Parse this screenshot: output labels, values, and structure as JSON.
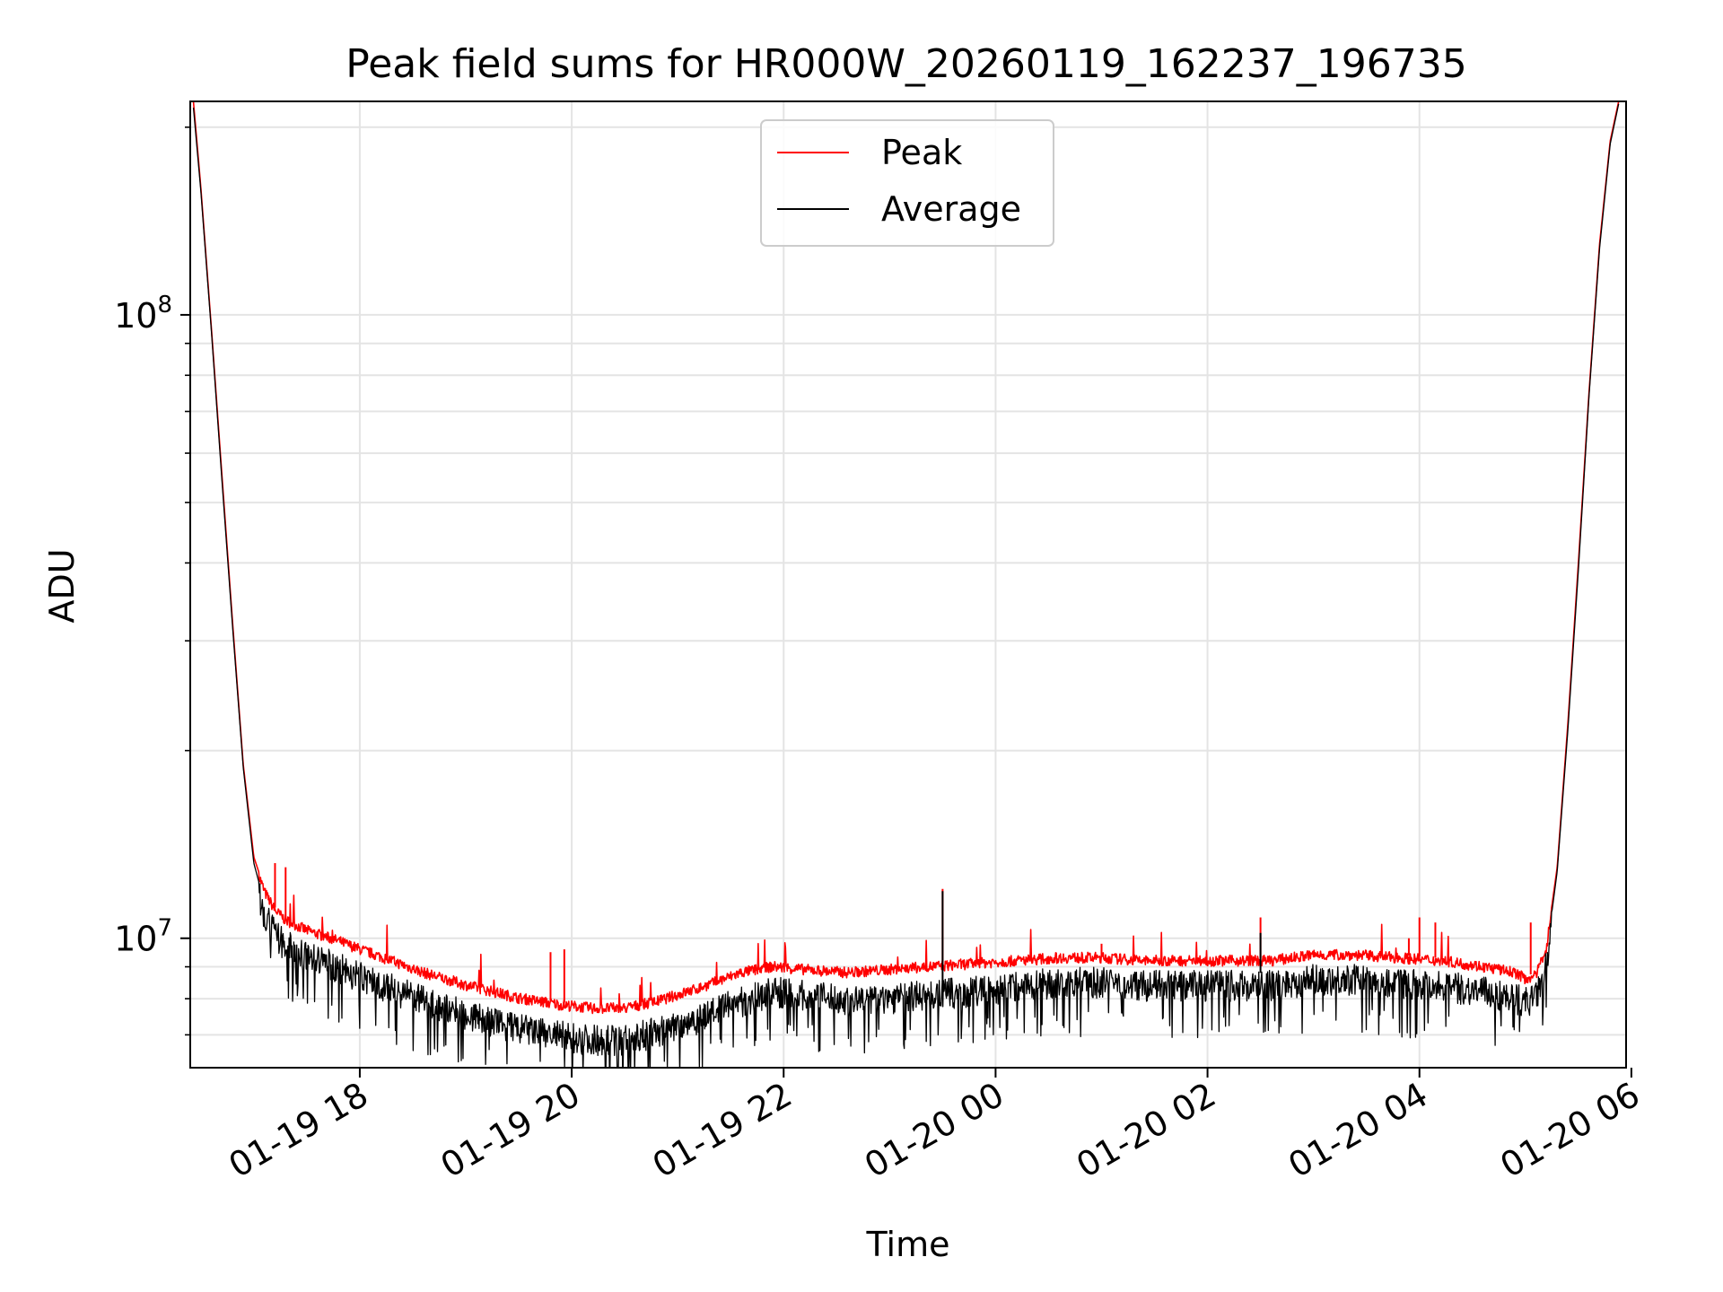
{
  "chart_data": {
    "type": "line",
    "title": "Peak field sums for HR000W_20260119_162237_196735",
    "xlabel": "Time",
    "ylabel": "ADU",
    "yscale": "log",
    "xlim_hours": [
      16.4,
      29.95
    ],
    "ylim": [
      6200000,
      220000000
    ],
    "grid": true,
    "legend_position": "top-center",
    "x_ticks": [
      {
        "hour": 18,
        "label": "01-19 18"
      },
      {
        "hour": 20,
        "label": "01-19 20"
      },
      {
        "hour": 22,
        "label": "01-19 22"
      },
      {
        "hour": 24,
        "label": "01-20 00"
      },
      {
        "hour": 26,
        "label": "01-20 02"
      },
      {
        "hour": 28,
        "label": "01-20 04"
      },
      {
        "hour": 30,
        "label": "01-20 06"
      }
    ],
    "y_major_ticks": [
      {
        "value": 10000000,
        "base": "10",
        "exp": "7"
      },
      {
        "value": 100000000,
        "base": "10",
        "exp": "8"
      }
    ],
    "y_minor_ticks": [
      7000000,
      8000000,
      9000000,
      20000000,
      30000000,
      40000000,
      50000000,
      60000000,
      70000000,
      80000000,
      90000000,
      200000000
    ],
    "series": [
      {
        "name": "Peak",
        "color": "#ff0000",
        "x_hours": [
          16.43,
          16.5,
          16.6,
          16.7,
          16.8,
          16.9,
          17.0,
          17.1,
          17.2,
          17.3,
          17.5,
          17.8,
          18.0,
          18.3,
          18.6,
          19.0,
          19.5,
          19.9,
          20.2,
          20.5,
          20.8,
          21.2,
          21.6,
          21.9,
          22.2,
          22.6,
          23.0,
          23.4,
          23.8,
          24.2,
          24.6,
          25.0,
          25.4,
          25.8,
          26.2,
          26.6,
          27.0,
          27.4,
          27.8,
          28.2,
          28.6,
          28.9,
          29.0,
          29.1,
          29.2,
          29.3,
          29.4,
          29.5,
          29.6,
          29.7,
          29.8,
          29.88
        ],
        "values": [
          220000000,
          160000000,
          95000000,
          55000000,
          32000000,
          19000000,
          13500000,
          12000000,
          11200000,
          10800000,
          10400000,
          10000000,
          9700000,
          9300000,
          8900000,
          8500000,
          8100000,
          7900000,
          7800000,
          7800000,
          8000000,
          8400000,
          8900000,
          9100000,
          9000000,
          8900000,
          9000000,
          9100000,
          9200000,
          9300000,
          9400000,
          9400000,
          9300000,
          9300000,
          9300000,
          9300000,
          9500000,
          9500000,
          9400000,
          9300000,
          9100000,
          8900000,
          8700000,
          8800000,
          9800000,
          13000000,
          22000000,
          40000000,
          75000000,
          130000000,
          190000000,
          220000000
        ],
        "spikes": [
          {
            "hour": 17.2,
            "value": 13200000
          },
          {
            "hour": 17.3,
            "value": 13000000
          },
          {
            "hour": 19.8,
            "value": 9500000
          },
          {
            "hour": 19.93,
            "value": 9600000
          },
          {
            "hour": 23.5,
            "value": 12000000
          },
          {
            "hour": 25.0,
            "value": 9800000
          },
          {
            "hour": 26.5,
            "value": 10800000
          },
          {
            "hour": 27.9,
            "value": 10000000
          },
          {
            "hour": 28.0,
            "value": 10800000
          },
          {
            "hour": 28.15,
            "value": 10600000
          },
          {
            "hour": 29.05,
            "value": 10600000
          }
        ]
      },
      {
        "name": "Average",
        "color": "#000000",
        "x_hours": [
          16.43,
          16.5,
          16.6,
          16.7,
          16.8,
          16.9,
          17.0,
          17.1,
          17.2,
          17.3,
          17.5,
          17.8,
          18.0,
          18.3,
          18.6,
          19.0,
          19.5,
          19.9,
          20.2,
          20.5,
          20.8,
          21.2,
          21.6,
          21.9,
          22.2,
          22.6,
          23.0,
          23.4,
          23.8,
          24.2,
          24.6,
          25.0,
          25.4,
          25.8,
          26.2,
          26.6,
          27.0,
          27.4,
          27.8,
          28.2,
          28.6,
          28.9,
          29.0,
          29.1,
          29.2,
          29.3,
          29.4,
          29.5,
          29.6,
          29.7,
          29.8,
          29.88
        ],
        "values": [
          215000000,
          158000000,
          94000000,
          54000000,
          31500000,
          18800000,
          13200000,
          11400000,
          10600000,
          10200000,
          9800000,
          9400000,
          9100000,
          8700000,
          8300000,
          7900000,
          7500000,
          7300000,
          7200000,
          7200000,
          7400000,
          7800000,
          8300000,
          8600000,
          8500000,
          8300000,
          8400000,
          8500000,
          8600000,
          8800000,
          8900000,
          8900000,
          8800000,
          8800000,
          8800000,
          8800000,
          9000000,
          9000000,
          8900000,
          8800000,
          8600000,
          8400000,
          8300000,
          8400000,
          9500000,
          12800000,
          21500000,
          39000000,
          74000000,
          128000000,
          188000000,
          218000000
        ],
        "spikes": [
          {
            "hour": 23.5,
            "value": 11900000
          },
          {
            "hour": 26.5,
            "value": 10200000
          },
          {
            "hour": 22.0,
            "value": 8300000
          }
        ]
      }
    ]
  }
}
